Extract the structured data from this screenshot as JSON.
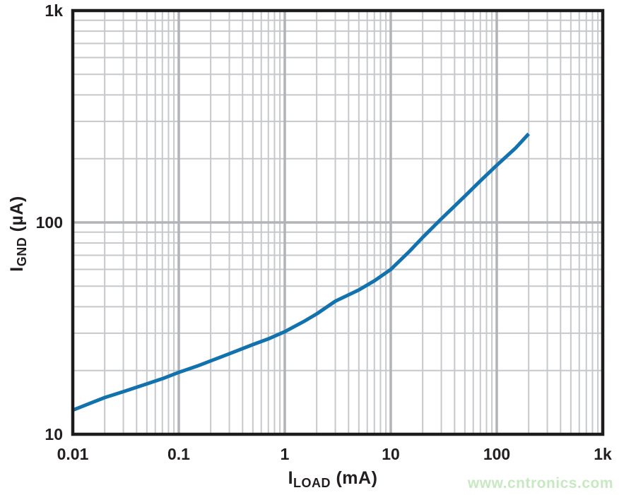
{
  "figure": {
    "background": "#ffffff",
    "watermark": {
      "text": "www.cntronics.com",
      "color": "#c7e9c1"
    }
  },
  "chart_data": {
    "type": "line",
    "title": "",
    "xlabel": "I_LOAD (mA)",
    "ylabel": "I_GND (uA)",
    "xlabel_parts": {
      "main": "I",
      "sub": "LOAD",
      "rest": " (mA)"
    },
    "ylabel_parts": {
      "main": "I",
      "sub": "GND",
      "rest": " (µA)"
    },
    "x_scale": "log",
    "y_scale": "log",
    "x_range": [
      0.01,
      1000
    ],
    "y_range": [
      10,
      1000
    ],
    "grid": {
      "show": true,
      "minor_color": "#c6c8cc",
      "major_color": "#b1b3b8"
    },
    "axis_color": "#1d1b1c",
    "text_color": "#231f20",
    "x_ticks": [
      {
        "v": 0.01,
        "label": "0.01"
      },
      {
        "v": 0.1,
        "label": "0.1"
      },
      {
        "v": 1,
        "label": "1"
      },
      {
        "v": 10,
        "label": "10"
      },
      {
        "v": 100,
        "label": "100"
      },
      {
        "v": 1000,
        "label": "1k"
      }
    ],
    "y_ticks": [
      {
        "v": 10,
        "label": "10"
      },
      {
        "v": 100,
        "label": "100"
      },
      {
        "v": 1000,
        "label": "1k"
      }
    ],
    "series": [
      {
        "name": "ground current vs load current",
        "color": "#1172ae",
        "width": 5,
        "x": [
          0.01,
          0.02,
          0.03,
          0.05,
          0.07,
          0.1,
          0.15,
          0.2,
          0.3,
          0.5,
          0.7,
          1,
          1.5,
          2,
          3,
          5,
          7,
          10,
          15,
          20,
          30,
          50,
          70,
          100,
          150,
          200
        ],
        "y": [
          13,
          14.9,
          15.9,
          17.3,
          18.3,
          19.6,
          21,
          22.2,
          24,
          26.5,
          28.2,
          30.5,
          34,
          37,
          42.5,
          48,
          53,
          60,
          73,
          85,
          104,
          133,
          157,
          186,
          224,
          262
        ]
      }
    ]
  }
}
